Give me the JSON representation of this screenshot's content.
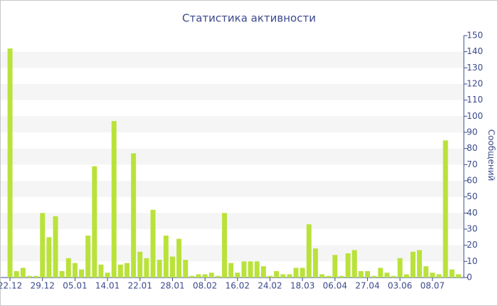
{
  "chart_data": {
    "type": "bar",
    "title": "Статистика активности",
    "y_label": "Сообщений",
    "categories": [
      "22.12",
      null,
      null,
      null,
      null,
      "29.12",
      null,
      null,
      null,
      null,
      "05.01",
      null,
      null,
      null,
      null,
      "14.01",
      null,
      null,
      null,
      null,
      "22.01",
      null,
      null,
      null,
      null,
      "28.01",
      null,
      null,
      null,
      null,
      "08.02",
      null,
      null,
      null,
      null,
      "16.02",
      null,
      null,
      null,
      null,
      "24.02",
      null,
      null,
      null,
      null,
      "18.03",
      null,
      null,
      null,
      null,
      "06.04",
      null,
      null,
      null,
      null,
      "27.04",
      null,
      null,
      null,
      null,
      "03.06",
      null,
      null,
      null,
      null,
      "08.07",
      null,
      null,
      null,
      null
    ],
    "values": [
      142,
      4,
      6,
      1,
      1,
      40,
      25,
      38,
      4,
      12,
      9,
      5,
      26,
      69,
      8,
      3,
      97,
      8,
      9,
      77,
      16,
      12,
      42,
      11,
      26,
      13,
      24,
      11,
      1,
      2,
      2,
      3,
      1,
      40,
      9,
      3,
      10,
      10,
      10,
      7,
      1,
      4,
      2,
      2,
      6,
      6,
      33,
      18,
      2,
      1,
      14,
      1,
      15,
      17,
      4,
      4,
      1,
      6,
      3,
      1,
      12,
      2,
      16,
      17,
      7,
      3,
      2,
      85,
      5,
      2
    ],
    "color": "#b9e23a",
    "ylim": [
      0,
      150
    ],
    "yticks": [
      0,
      10,
      20,
      30,
      40,
      50,
      60,
      70,
      80,
      90,
      100,
      110,
      120,
      130,
      140,
      150
    ],
    "grid": true
  }
}
